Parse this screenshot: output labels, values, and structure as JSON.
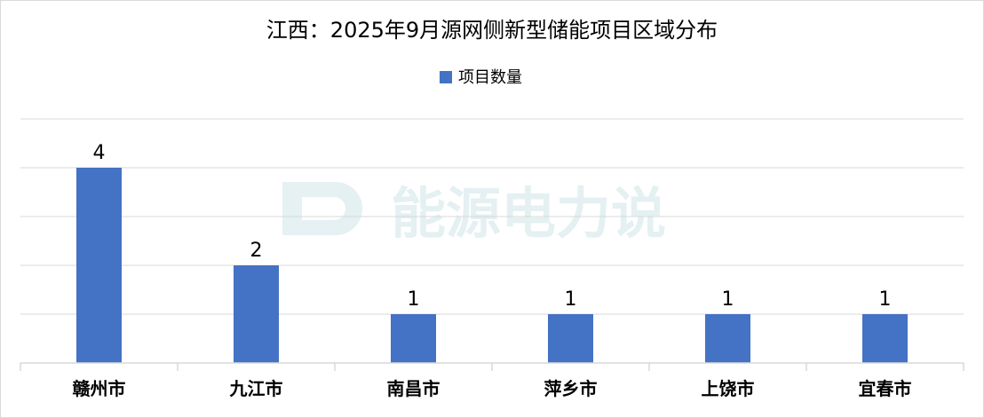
{
  "chart_data": {
    "type": "bar",
    "title": "江西：2025年9月源网侧新型储能项目区域分布",
    "legend": {
      "position": "top",
      "entries": [
        "项目数量"
      ]
    },
    "categories": [
      "赣州市",
      "九江市",
      "南昌市",
      "萍乡市",
      "上饶市",
      "宜春市"
    ],
    "series": [
      {
        "name": "项目数量",
        "values": [
          4,
          2,
          1,
          1,
          1,
          1
        ],
        "color": "#4472C4"
      }
    ],
    "ylim": [
      0,
      5
    ],
    "grid": true,
    "data_labels": true
  },
  "watermark": {
    "text": "能源电力说",
    "logo": "E+"
  }
}
